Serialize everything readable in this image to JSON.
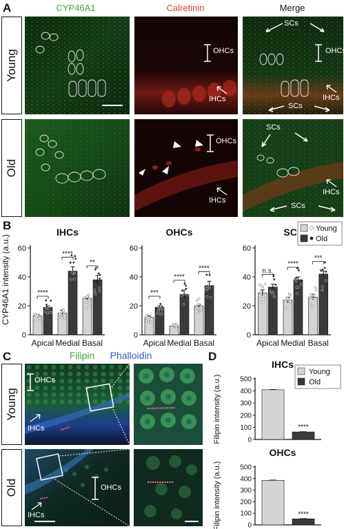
{
  "panels": {
    "A": "A",
    "B": "B",
    "C": "C",
    "D": "D"
  },
  "panel_a": {
    "headers": {
      "cyp": "CYP46A1",
      "calretinin": "Calretinin",
      "merge": "Merge"
    },
    "rows": {
      "young": "Young",
      "old": "Old"
    },
    "annotations": {
      "ohcs": "OHCs",
      "ihcs": "IHCs",
      "scs": "SCs"
    },
    "colors": {
      "green_header": "#3aa53a",
      "red_header": "#e03a2a"
    }
  },
  "panel_c": {
    "headers": {
      "filipin": "Filipin",
      "phalloidin": "Phalloidin"
    },
    "rows": {
      "young": "Young",
      "old": "Old"
    },
    "annotations": {
      "ohcs": "OHCs",
      "ihcs": "IHCs"
    },
    "colors": {
      "filipin": "#3aa53a",
      "phalloidin": "#2d5fc4"
    }
  },
  "chart_data": [
    {
      "type": "bar",
      "panel": "B",
      "title": "IHCs",
      "ylabel": "CYP46A1 intensity (a.u.)",
      "ylim": [
        0,
        60
      ],
      "yticks": [
        0,
        20,
        40,
        60
      ],
      "categories": [
        "Apical",
        "Medial",
        "Basal"
      ],
      "series": [
        {
          "name": "Young",
          "values": [
            13,
            15,
            25
          ],
          "errors": [
            1,
            2,
            1
          ]
        },
        {
          "name": "Old",
          "values": [
            19,
            44,
            38
          ],
          "errors": [
            1,
            3,
            3
          ]
        }
      ],
      "significance": [
        "****",
        "****",
        "**"
      ]
    },
    {
      "type": "bar",
      "panel": "B",
      "title": "OHCs",
      "ylabel": "",
      "ylim": [
        0,
        60
      ],
      "yticks": [
        0,
        20,
        40,
        60
      ],
      "categories": [
        "Apical",
        "Medial",
        "Basal"
      ],
      "series": [
        {
          "name": "Young",
          "values": [
            12,
            6,
            20
          ],
          "errors": [
            1,
            1,
            1
          ]
        },
        {
          "name": "Old",
          "values": [
            19,
            28,
            34
          ],
          "errors": [
            1,
            3,
            3
          ]
        }
      ],
      "significance": [
        "***",
        "****",
        "****"
      ]
    },
    {
      "type": "bar",
      "panel": "B",
      "title": "SCs",
      "ylabel": "",
      "ylim": [
        0,
        60
      ],
      "yticks": [
        0,
        20,
        40,
        60
      ],
      "categories": [
        "Apical",
        "Medial",
        "Basal"
      ],
      "series": [
        {
          "name": "Young",
          "values": [
            29,
            24,
            26
          ],
          "errors": [
            2,
            2,
            2
          ]
        },
        {
          "name": "Old",
          "values": [
            33,
            38,
            42
          ],
          "errors": [
            2,
            2,
            2
          ]
        }
      ],
      "significance": [
        "n.s.",
        "****",
        "***"
      ],
      "legend": {
        "placement": "top-right",
        "entries": [
          "Young",
          "Old"
        ]
      }
    },
    {
      "type": "bar",
      "panel": "D",
      "title": "IHCs",
      "ylabel": "Filipin intensity (a.u.)",
      "ylim": [
        0,
        500
      ],
      "yticks": [
        0,
        100,
        200,
        300,
        400,
        500
      ],
      "categories": [
        "Young",
        "Old"
      ],
      "values": [
        410,
        62
      ],
      "errors": [
        2,
        2
      ],
      "significance": [
        "",
        "****"
      ],
      "legend": {
        "placement": "top-right",
        "entries": [
          "Young",
          "Old"
        ]
      }
    },
    {
      "type": "bar",
      "panel": "D",
      "title": "OHCs",
      "ylabel": "Filipin intensity (a.u.)",
      "ylim": [
        0,
        500
      ],
      "yticks": [
        0,
        100,
        200,
        300,
        400,
        500
      ],
      "categories": [
        "Young",
        "Old"
      ],
      "values": [
        385,
        52
      ],
      "errors": [
        2,
        2
      ],
      "significance": [
        "",
        "****"
      ]
    }
  ]
}
